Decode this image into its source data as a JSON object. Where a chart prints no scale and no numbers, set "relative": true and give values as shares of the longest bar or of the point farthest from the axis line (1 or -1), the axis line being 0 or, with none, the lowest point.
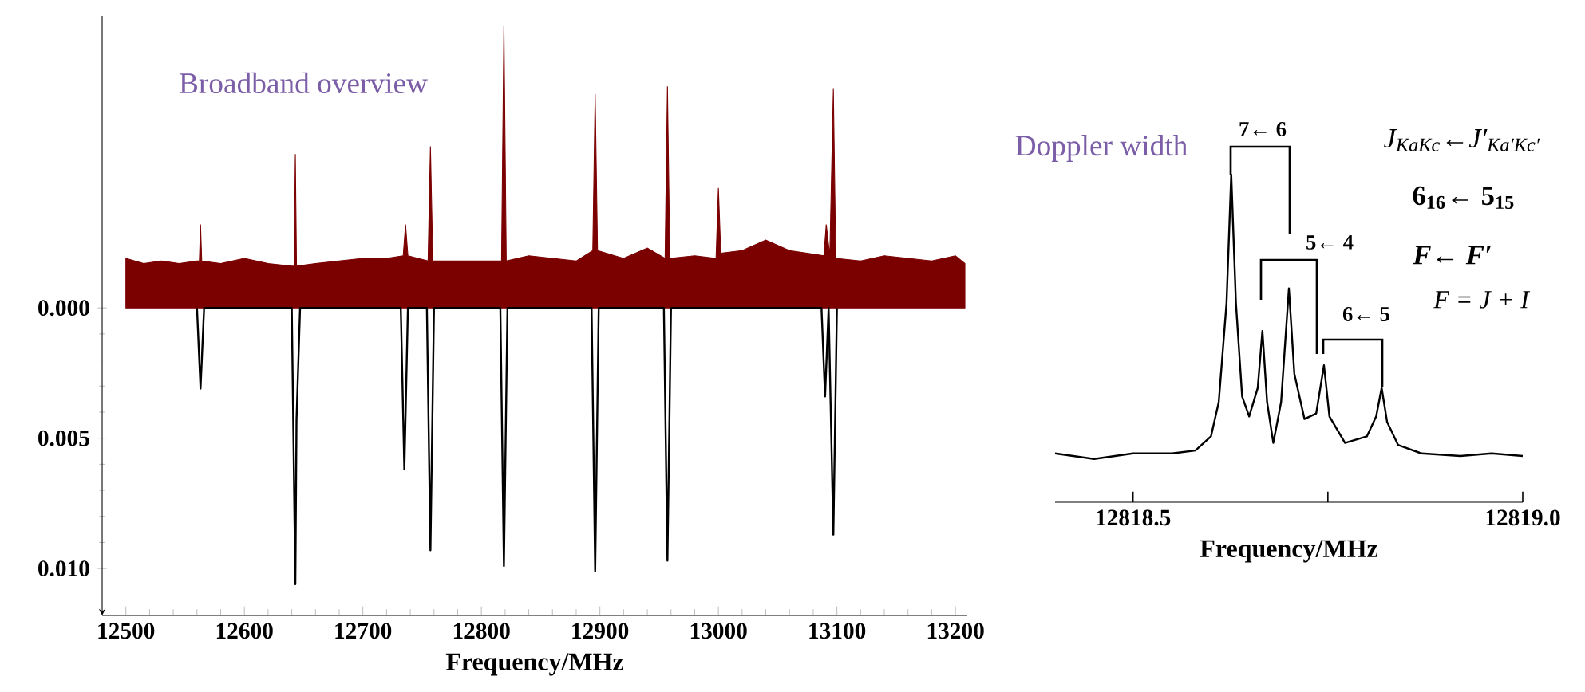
{
  "chart_data": [
    {
      "type": "line",
      "title": "Broadband overview",
      "xlabel": "Frequency/MHz",
      "xlim": [
        12480,
        13210
      ],
      "ylim": [
        0.0118,
        -0.0112
      ],
      "xticks": [
        12500,
        12600,
        12700,
        12800,
        12900,
        13000,
        13100,
        13200
      ],
      "yticks": [
        {
          "value": 0,
          "label": "0.000"
        },
        {
          "value": 0.005,
          "label": "0.005"
        },
        {
          "value": 0.01,
          "label": "0.010"
        }
      ],
      "series": [
        {
          "type": "area",
          "color": "#7b0000",
          "x": [
            12500,
            12515,
            12530,
            12545,
            12560,
            12562,
            12563,
            12564,
            12580,
            12600,
            12620,
            12640,
            12642,
            12643,
            12644,
            12660,
            12680,
            12700,
            12720,
            12734,
            12736,
            12738,
            12755,
            12757,
            12759,
            12780,
            12800,
            12817,
            12819,
            12821,
            12840,
            12860,
            12880,
            12894,
            12896,
            12898,
            12920,
            12940,
            12955,
            12957,
            12959,
            12980,
            12998,
            13000,
            13002,
            13020,
            13040,
            13060,
            13089,
            13091,
            13094,
            13097,
            13099,
            13120,
            13140,
            13160,
            13180,
            13200,
            13208
          ],
          "values": [
            -0.0019,
            -0.0017,
            -0.0018,
            -0.0017,
            -0.0018,
            -0.0018,
            -0.0032,
            -0.0018,
            -0.0017,
            -0.0019,
            -0.0017,
            -0.0016,
            -0.0016,
            -0.0059,
            -0.0016,
            -0.0017,
            -0.0018,
            -0.0019,
            -0.0019,
            -0.002,
            -0.0032,
            -0.002,
            -0.0018,
            -0.0062,
            -0.0018,
            -0.0018,
            -0.0018,
            -0.0018,
            -0.0108,
            -0.0018,
            -0.002,
            -0.0019,
            -0.0018,
            -0.0022,
            -0.0082,
            -0.0022,
            -0.0019,
            -0.0023,
            -0.0019,
            -0.0085,
            -0.0019,
            -0.002,
            -0.0019,
            -0.0046,
            -0.0021,
            -0.0022,
            -0.0026,
            -0.0022,
            -0.002,
            -0.0032,
            -0.002,
            -0.0084,
            -0.0019,
            -0.0018,
            -0.002,
            -0.0019,
            -0.0018,
            -0.002,
            -0.0017
          ]
        },
        {
          "type": "line",
          "color": "#000000",
          "x": [
            12560,
            12563,
            12566,
            12640,
            12643,
            12644,
            12647,
            12732,
            12735,
            12738,
            12754,
            12757,
            12760,
            12816,
            12819,
            12822,
            12893,
            12896,
            12899,
            12954,
            12957,
            12960,
            13087,
            13090,
            13093,
            13097,
            13100
          ],
          "values": [
            0,
            0.0031,
            0,
            0,
            0.0106,
            0.0043,
            0,
            0,
            0.0062,
            0,
            0,
            0.0093,
            0,
            0,
            0.0099,
            0,
            0,
            0.0101,
            0,
            0,
            0.0097,
            0,
            0,
            0.0034,
            0,
            0.0087,
            0
          ]
        }
      ]
    },
    {
      "type": "line",
      "title": "Doppler width",
      "xlabel": "Frequency/MHz",
      "relative": true,
      "xlim": [
        12818.4,
        12819.0
      ],
      "xticks": [
        {
          "value": 12818.5,
          "label": "12818.5"
        },
        {
          "value": 12818.75,
          "label": null
        },
        {
          "value": 12819.0,
          "label": "12819.0"
        }
      ],
      "series": [
        {
          "color": "#000000",
          "x": [
            12818.4,
            12818.45,
            12818.5,
            12818.55,
            12818.58,
            12818.6,
            12818.61,
            12818.62,
            12818.626,
            12818.632,
            12818.64,
            12818.649,
            12818.66,
            12818.666,
            12818.672,
            12818.68,
            12818.69,
            12818.7,
            12818.707,
            12818.72,
            12818.735,
            12818.745,
            12818.752,
            12818.772,
            12818.8,
            12818.812,
            12818.819,
            12818.826,
            12818.84,
            12818.87,
            12818.92,
            12818.96,
            12819.0
          ],
          "values": [
            0.149,
            0.132,
            0.149,
            0.149,
            0.158,
            0.201,
            0.306,
            0.609,
            1.0,
            0.609,
            0.323,
            0.262,
            0.349,
            0.523,
            0.306,
            0.181,
            0.306,
            0.653,
            0.392,
            0.254,
            0.271,
            0.418,
            0.262,
            0.181,
            0.201,
            0.262,
            0.349,
            0.245,
            0.175,
            0.149,
            0.141,
            0.149,
            0.141
          ]
        }
      ],
      "annotations": [
        "7← 6",
        "5← 4",
        "6← 5",
        "*J*$_{KaKc}$←*J′*$_{Ka′Kc′}$",
        "6$_{16}$← 5$_{15}$",
        "F← F′",
        "F = J + I"
      ]
    }
  ]
}
